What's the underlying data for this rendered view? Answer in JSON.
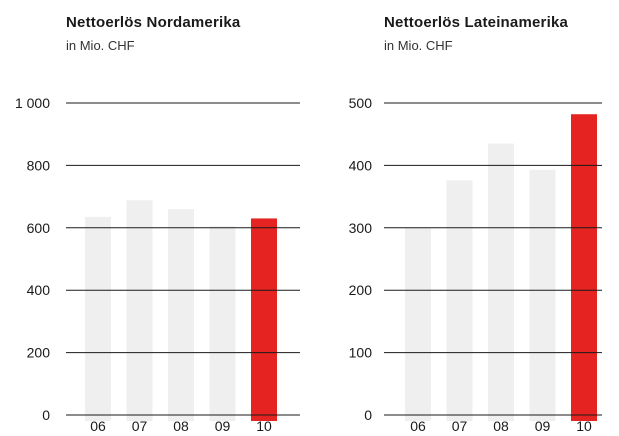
{
  "chart_data": [
    {
      "type": "bar",
      "title": "Nettoerlös Nordamerika",
      "subtitle": "in Mio. CHF",
      "categories": [
        "06",
        "07",
        "08",
        "09",
        "10"
      ],
      "values": [
        635,
        688,
        660,
        605,
        630
      ],
      "ylim": [
        0,
        1000
      ],
      "yticks": [
        0,
        200,
        400,
        600,
        800,
        1000
      ],
      "ytick_labels": [
        "0",
        "200",
        "400",
        "600",
        "800",
        "1 000"
      ],
      "grid": true,
      "colors": [
        "#efefef",
        "#efefef",
        "#efefef",
        "#efefef",
        "#e52421"
      ]
    },
    {
      "type": "bar",
      "title": "Nettoerlös Lateinamerika",
      "subtitle": "in Mio. CHF",
      "categories": [
        "06",
        "07",
        "08",
        "09",
        "10"
      ],
      "values": [
        300,
        376,
        435,
        393,
        482
      ],
      "ylim": [
        0,
        500
      ],
      "yticks": [
        0,
        100,
        200,
        300,
        400,
        500
      ],
      "ytick_labels": [
        "0",
        "100",
        "200",
        "300",
        "400",
        "500"
      ],
      "grid": true,
      "colors": [
        "#efefef",
        "#efefef",
        "#efefef",
        "#efefef",
        "#e52421"
      ]
    }
  ],
  "colors": {
    "bar_default": "#efefef",
    "bar_highlight": "#e52421",
    "gridline": "#1a1a1a"
  }
}
